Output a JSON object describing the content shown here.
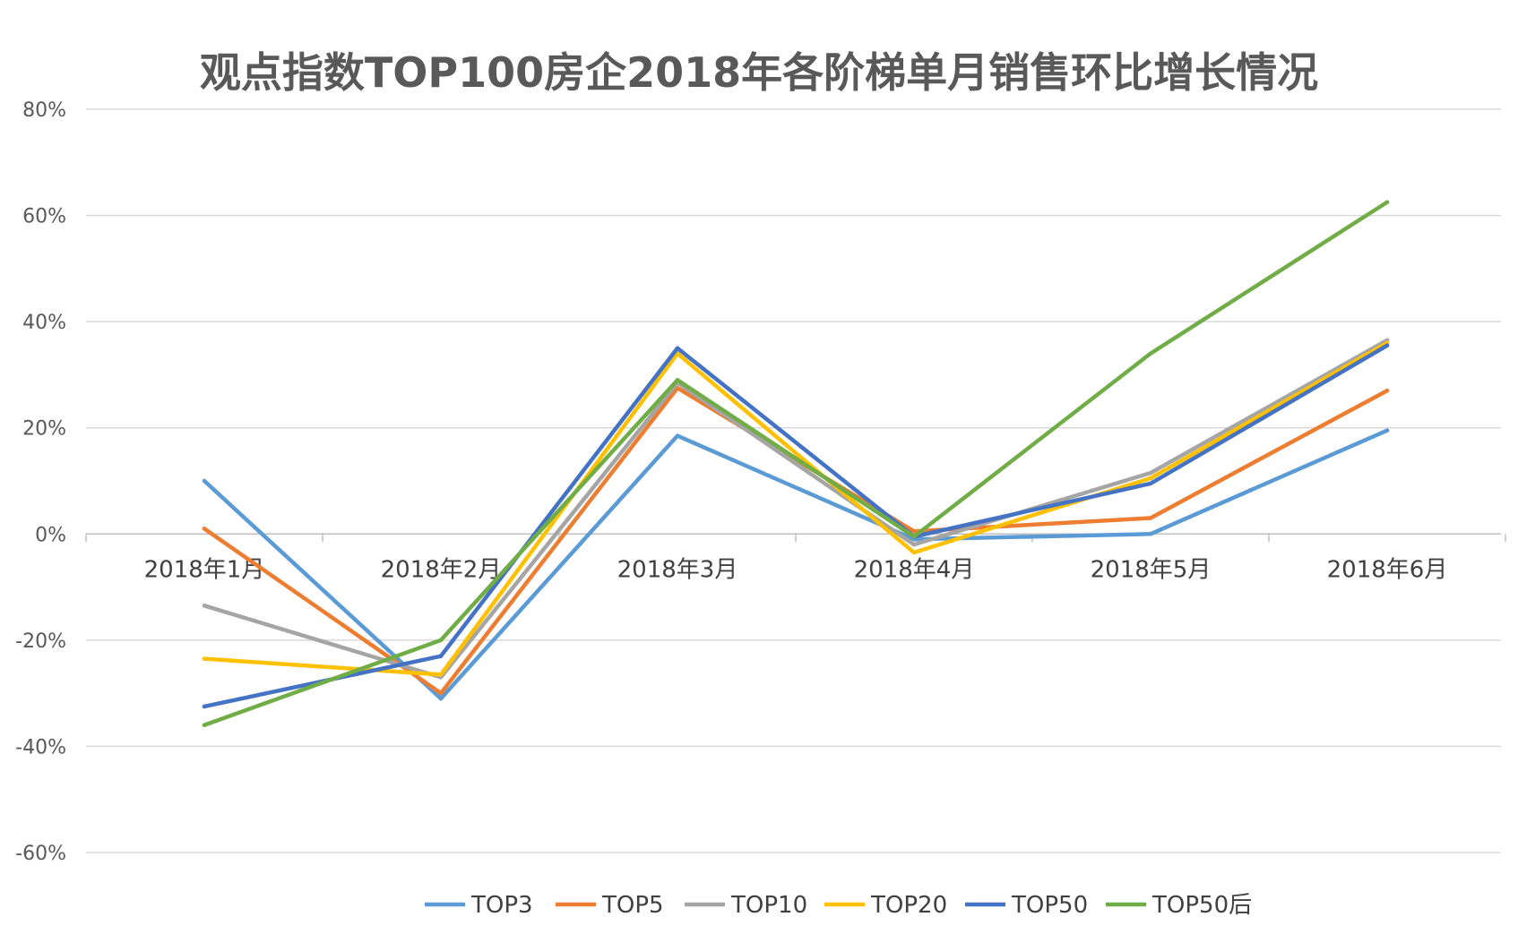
{
  "chart_data": {
    "type": "line",
    "title": "观点指数TOP100房企2018年各阶梯单月销售环比增长情况",
    "categories": [
      "2018年1月",
      "2018年2月",
      "2018年3月",
      "2018年4月",
      "2018年5月",
      "2018年6月"
    ],
    "y_ticks": [
      "80%",
      "60%",
      "40%",
      "20%",
      "0%",
      "-20%",
      "-40%",
      "-60%"
    ],
    "y_tick_values": [
      80,
      60,
      40,
      20,
      0,
      -20,
      -40,
      -60
    ],
    "ylim": [
      -60,
      80
    ],
    "y_unit": "%",
    "grid": true,
    "legend_position": "bottom",
    "series": [
      {
        "name": "TOP3",
        "color": "#5b9bd5",
        "values": [
          10,
          -31,
          18.5,
          -1,
          0,
          19.5
        ]
      },
      {
        "name": "TOP5",
        "color": "#ed7d31",
        "values": [
          1,
          -30,
          27.5,
          0.5,
          3,
          27
        ]
      },
      {
        "name": "TOP10",
        "color": "#a5a5a5",
        "values": [
          -13.5,
          -27,
          28.5,
          -2,
          11.5,
          36.5
        ]
      },
      {
        "name": "TOP20",
        "color": "#ffc000",
        "values": [
          -23.5,
          -26.5,
          34,
          -3.5,
          10.5,
          36
        ]
      },
      {
        "name": "TOP50",
        "color": "#4472c4",
        "values": [
          -32.5,
          -23,
          35,
          -0.5,
          9.5,
          35.5
        ]
      },
      {
        "name": "TOP50后",
        "color": "#70ad47",
        "values": [
          -36,
          -20,
          29,
          -0.5,
          34,
          62.5
        ]
      }
    ]
  }
}
